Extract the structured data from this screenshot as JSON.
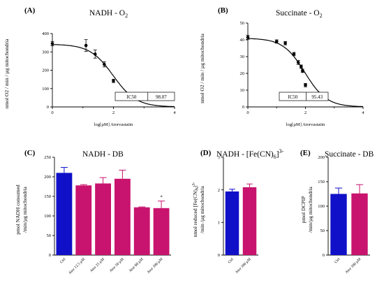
{
  "chart_data": [
    {
      "type": "scatter",
      "panel_label": "(A)",
      "title": "NADH - O",
      "title_sub": "2",
      "ylabel": "nmol O2 / min / µg mitochondria",
      "xlabel": "log[µM] Atorvastatin",
      "xlim": [
        0,
        4
      ],
      "ylim": [
        0,
        400
      ],
      "xticks": [
        "0",
        "2",
        "4"
      ],
      "yticks": [
        "0",
        "100",
        "200",
        "300",
        "400"
      ],
      "points": [
        {
          "x": 0.0,
          "y": 345,
          "err": 12
        },
        {
          "x": 1.1,
          "y": 335,
          "err": 32
        },
        {
          "x": 1.4,
          "y": 288,
          "err": 22
        },
        {
          "x": 1.7,
          "y": 232,
          "err": 14
        },
        {
          "x": 2.0,
          "y": 142,
          "err": 9
        }
      ],
      "fit": {
        "top": 342,
        "bottom": 0,
        "log_ic50": 1.99,
        "hill": 1.15
      },
      "ic50_label": "IC50",
      "ic50_value": "98.07",
      "grid": false
    },
    {
      "type": "scatter",
      "panel_label": "(B)",
      "title": "Succinate - O",
      "title_sub": "2",
      "ylabel": "nmol O2 / min / µg mitochondria",
      "xlabel": "log[µM] Atorvastatin",
      "xlim": [
        0,
        4
      ],
      "ylim": [
        0,
        50
      ],
      "xticks": [
        "0",
        "2",
        "4"
      ],
      "yticks": [
        "0",
        "10",
        "20",
        "30",
        "40",
        "50"
      ],
      "points": [
        {
          "x": 0.0,
          "y": 41.5,
          "err": 1.2
        },
        {
          "x": 1.0,
          "y": 39.0,
          "err": 1.0
        },
        {
          "x": 1.3,
          "y": 38.0,
          "err": 1.0
        },
        {
          "x": 1.6,
          "y": 31.5,
          "err": 1.0
        },
        {
          "x": 1.75,
          "y": 26.5,
          "err": 1.2
        },
        {
          "x": 1.85,
          "y": 24.0,
          "err": 1.0
        },
        {
          "x": 1.9,
          "y": 21.5,
          "err": 1.0
        },
        {
          "x": 2.0,
          "y": 13.0,
          "err": 1.0
        }
      ],
      "fit": {
        "top": 41,
        "bottom": 0,
        "log_ic50": 1.98,
        "hill": 1.15
      },
      "ic50_label": "IC50",
      "ic50_value": "95.43",
      "grid": false
    },
    {
      "type": "bar",
      "panel_label": "(C)",
      "title": "NADH - DB",
      "ylabel": "pmol NADH consumed /min/µg mitochondria",
      "categories": [
        "Ctrl",
        "Ator 12.5 µM",
        "Ator 25 µM",
        "Ator 50 µM",
        "Ator 80 µM",
        "Ator 100 µM"
      ],
      "values": [
        210,
        178,
        183,
        195,
        122,
        120
      ],
      "errors": [
        14,
        2,
        15,
        22,
        1,
        18
      ],
      "colors": [
        "#1010c8",
        "#c8146e",
        "#c8146e",
        "#c8146e",
        "#c8146e",
        "#c8146e"
      ],
      "annotations": [
        {
          "category": "Ator 100 µM",
          "text": "*"
        }
      ],
      "ylim": [
        0,
        250
      ],
      "yticks": [
        "0",
        "50",
        "100",
        "150",
        "200",
        "250"
      ]
    },
    {
      "type": "bar",
      "panel_label": "(D)",
      "title": "NADH - [Fe(CN)6]3-",
      "ylabel": "nmol reduced [Fe(CN)6]3- /min /µg mitochondria",
      "categories": [
        "Ctrl",
        "Ator 100 µM"
      ],
      "values": [
        1.95,
        2.08
      ],
      "errors": [
        0.07,
        0.1
      ],
      "colors": [
        "#1010c8",
        "#c8146e"
      ],
      "ylim": [
        0,
        3
      ],
      "yticks": [
        "0",
        "1",
        "2",
        "3"
      ]
    },
    {
      "type": "bar",
      "panel_label": "(E)",
      "title": "Succinate - DB",
      "ylabel": "pmol DCPIP /min/µg mitochondria",
      "categories": [
        "Ctrl",
        "Ator 100 µM"
      ],
      "values": [
        125,
        126
      ],
      "errors": [
        12,
        18
      ],
      "colors": [
        "#1010c8",
        "#c8146e"
      ],
      "ylim": [
        0,
        200
      ],
      "yticks": [
        "0",
        "50",
        "100",
        "150",
        "200"
      ]
    }
  ]
}
